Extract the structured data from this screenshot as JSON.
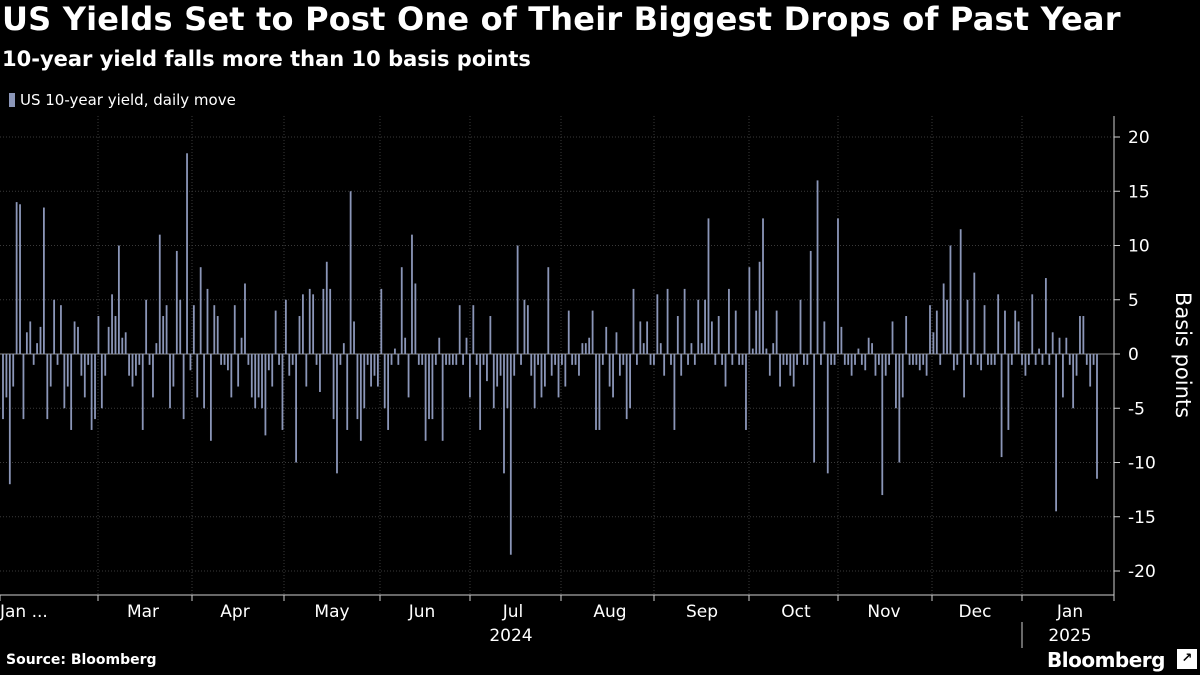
{
  "header": {
    "title": "US Yields Set to Post One of Their Biggest Drops of Past Year",
    "subtitle": "10-year yield falls more than 10 basis points"
  },
  "legend": {
    "label": "US 10-year yield, daily move",
    "color": "#8b96b8"
  },
  "footer": {
    "source": "Source: Bloomberg",
    "brand": "Bloomberg",
    "brand_icon": "external-link-icon"
  },
  "chart_data": {
    "type": "bar",
    "title": "US Yields Set to Post One of Their Biggest Drops of Past Year",
    "subtitle": "10-year yield falls more than 10 basis points",
    "series": [
      {
        "name": "US 10-year yield, daily move",
        "color": "#8b96b8",
        "values": [
          -6,
          -4,
          -12,
          -3,
          14,
          13.8,
          -6,
          2,
          3,
          -1,
          1,
          2.5,
          13.5,
          -6,
          -3,
          5,
          -1,
          4.5,
          -5,
          -3,
          -7,
          3,
          2.5,
          -2,
          -4,
          -1,
          -7,
          -6,
          3.5,
          -5,
          -2,
          2.5,
          5.5,
          3.5,
          10,
          1.5,
          2,
          -2,
          -3,
          -2,
          -1,
          -7,
          5,
          -1,
          -4,
          1,
          11,
          3.5,
          4.5,
          -5,
          -3,
          9.5,
          5,
          -6,
          18.5,
          -1.5,
          4.5,
          -4,
          8,
          -5,
          6,
          -8,
          4.5,
          3.5,
          -1,
          -1,
          -1.5,
          -4,
          4.5,
          -3,
          1.5,
          6.5,
          -1,
          -4,
          -5,
          -4,
          -5,
          -7.5,
          -1.5,
          -3,
          4,
          -1,
          -7,
          5,
          -2,
          -1,
          -10,
          3.5,
          5.5,
          -3,
          6,
          5.5,
          -1,
          -3.5,
          6,
          8.5,
          6,
          -6,
          -11,
          -1,
          1,
          -7,
          15,
          3,
          -6,
          -8,
          -5,
          -1,
          -3,
          -2,
          -3,
          6,
          -5,
          -7,
          -1,
          0.5,
          -1,
          8,
          1.5,
          -4,
          11,
          6.5,
          -1,
          -1,
          -8,
          -6,
          -6,
          -1,
          1.5,
          -8,
          -1,
          -1,
          -1,
          -1,
          4.5,
          -1,
          1.5,
          -4,
          4.5,
          -1,
          -7,
          -1,
          -2.5,
          3.5,
          -5,
          -3,
          -2,
          -11,
          -5,
          -18.5,
          -2,
          10,
          -1,
          5,
          4.5,
          -2,
          -5,
          -1,
          -4,
          -3,
          8,
          -2,
          -1,
          -4,
          -1,
          -3,
          4,
          -1,
          -1,
          -2,
          1,
          1,
          1.5,
          4,
          -7,
          -7,
          -1,
          2.5,
          -3,
          -4,
          2,
          -2,
          -1,
          -6,
          -5,
          6,
          -1,
          3,
          1,
          3,
          -1,
          -1,
          5.5,
          1,
          -2,
          6,
          -1,
          -7,
          3.5,
          -2,
          6,
          -1,
          1,
          -1,
          5,
          1,
          5,
          12.5,
          3,
          -1,
          3.5,
          -1,
          -3,
          6,
          -1,
          4,
          -1,
          -1,
          -7,
          8,
          0.5,
          4,
          8.5,
          12.5,
          0.5,
          -2,
          1,
          4,
          -3,
          -1,
          -1,
          -2,
          -3,
          -1,
          5,
          -1,
          -1,
          9.5,
          -10,
          16,
          -1,
          3,
          -11,
          -1,
          -1,
          12.5,
          2.5,
          -1,
          -1,
          -2,
          -1,
          0.5,
          -1,
          -1.5,
          1.5,
          1,
          -2,
          -1,
          -13,
          -2,
          -1,
          3,
          -5,
          -10,
          -4,
          3.5,
          -1,
          -1,
          -1,
          -1.5,
          -1,
          -2,
          4.5,
          2,
          4,
          -1,
          6.5,
          5,
          10,
          -1.5,
          -1,
          11.5,
          -4,
          5,
          -1,
          7.5,
          -1,
          -1.5,
          4.5,
          -1,
          -1,
          -1,
          5.5,
          -9.5,
          4,
          -7,
          -1,
          4,
          3,
          -1,
          -2,
          -1,
          5.5,
          -1,
          0.5,
          -1,
          7,
          -1,
          2,
          -14.5,
          1.5,
          -4,
          1.5,
          -1,
          -5,
          -2,
          3.5,
          3.5,
          -1,
          -3,
          -1,
          -11.5
        ]
      }
    ],
    "ylabel": "Basis points",
    "ylim": [
      -20,
      20
    ],
    "yticks": [
      "20",
      "15",
      "10",
      "5",
      "0",
      "-5",
      "-10",
      "-15",
      "-20"
    ],
    "xticks": [
      "Jan ...",
      "Mar",
      "Apr",
      "May",
      "Jun",
      "Jul",
      "Aug",
      "Sep",
      "Oct",
      "Nov",
      "Dec",
      "Jan"
    ],
    "year_labels": [
      "2024",
      "2025"
    ],
    "grid": true,
    "legend_position": "top-left"
  }
}
